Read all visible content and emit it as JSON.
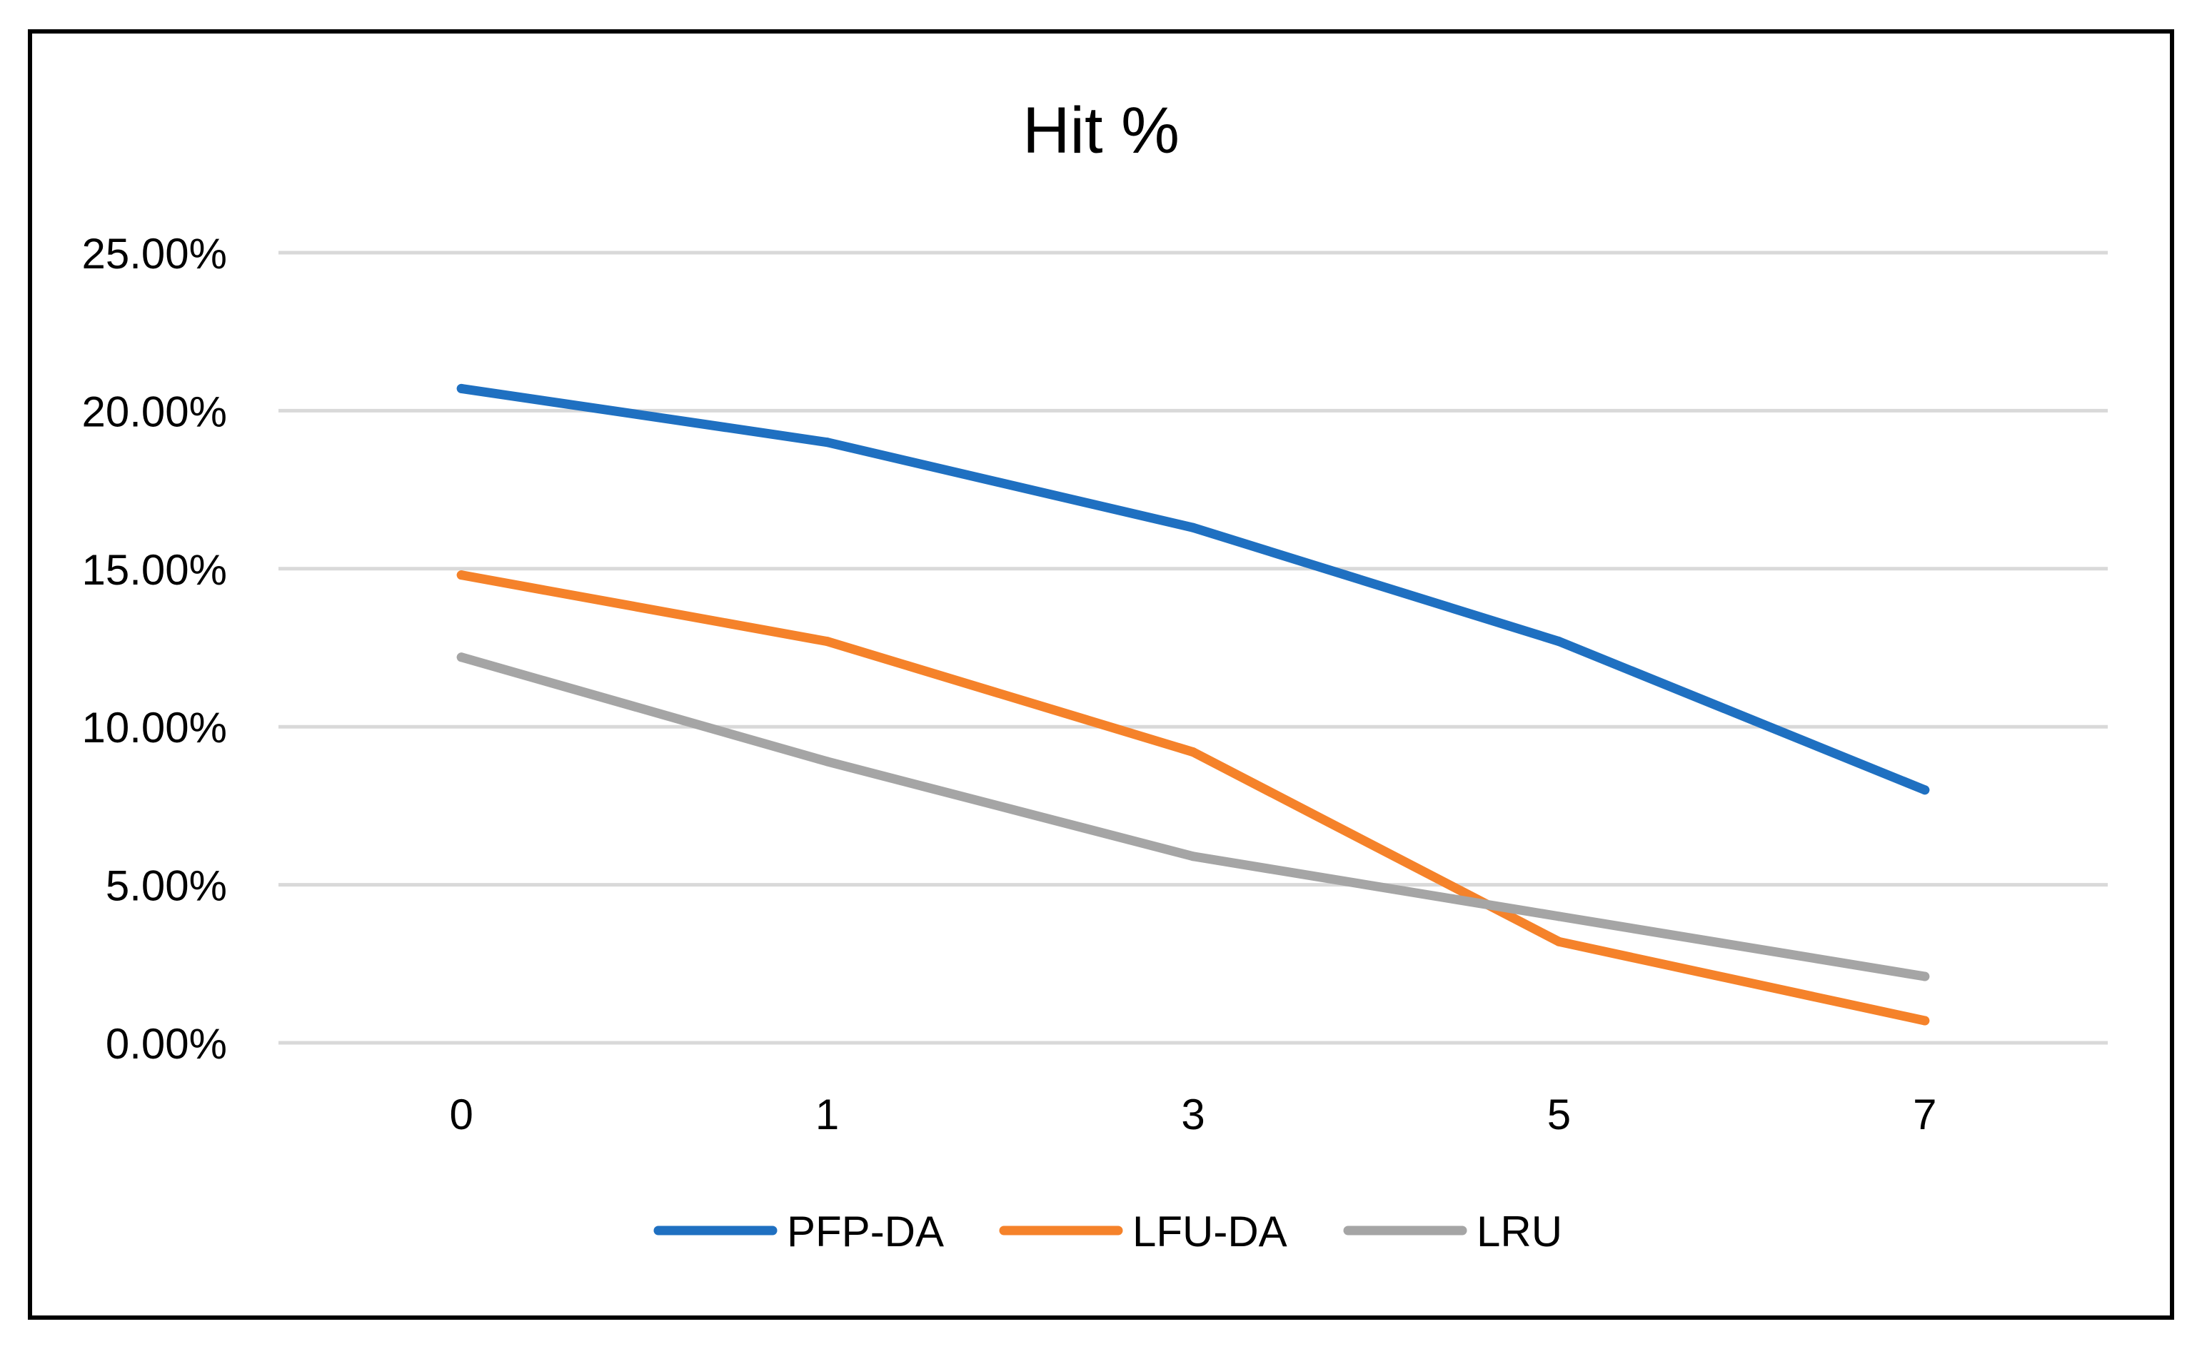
{
  "chart_data": {
    "type": "line",
    "title": "Hit %",
    "xlabel": "",
    "ylabel": "",
    "categories": [
      "0",
      "1",
      "3",
      "5",
      "7"
    ],
    "y_ticks": [
      "0.00%",
      "5.00%",
      "10.00%",
      "15.00%",
      "20.00%",
      "25.00%"
    ],
    "ylim": [
      0,
      0.25
    ],
    "grid": true,
    "legend_position": "bottom",
    "series": [
      {
        "name": "PFP-DA",
        "color": "#1f70c1",
        "values": [
          0.207,
          0.19,
          0.163,
          0.127,
          0.08
        ]
      },
      {
        "name": "LFU-DA",
        "color": "#f5822a",
        "values": [
          0.148,
          0.127,
          0.092,
          0.032,
          0.007
        ]
      },
      {
        "name": "LRU",
        "color": "#a5a5a5",
        "values": [
          0.122,
          0.089,
          0.059,
          0.04,
          0.021
        ]
      }
    ]
  }
}
